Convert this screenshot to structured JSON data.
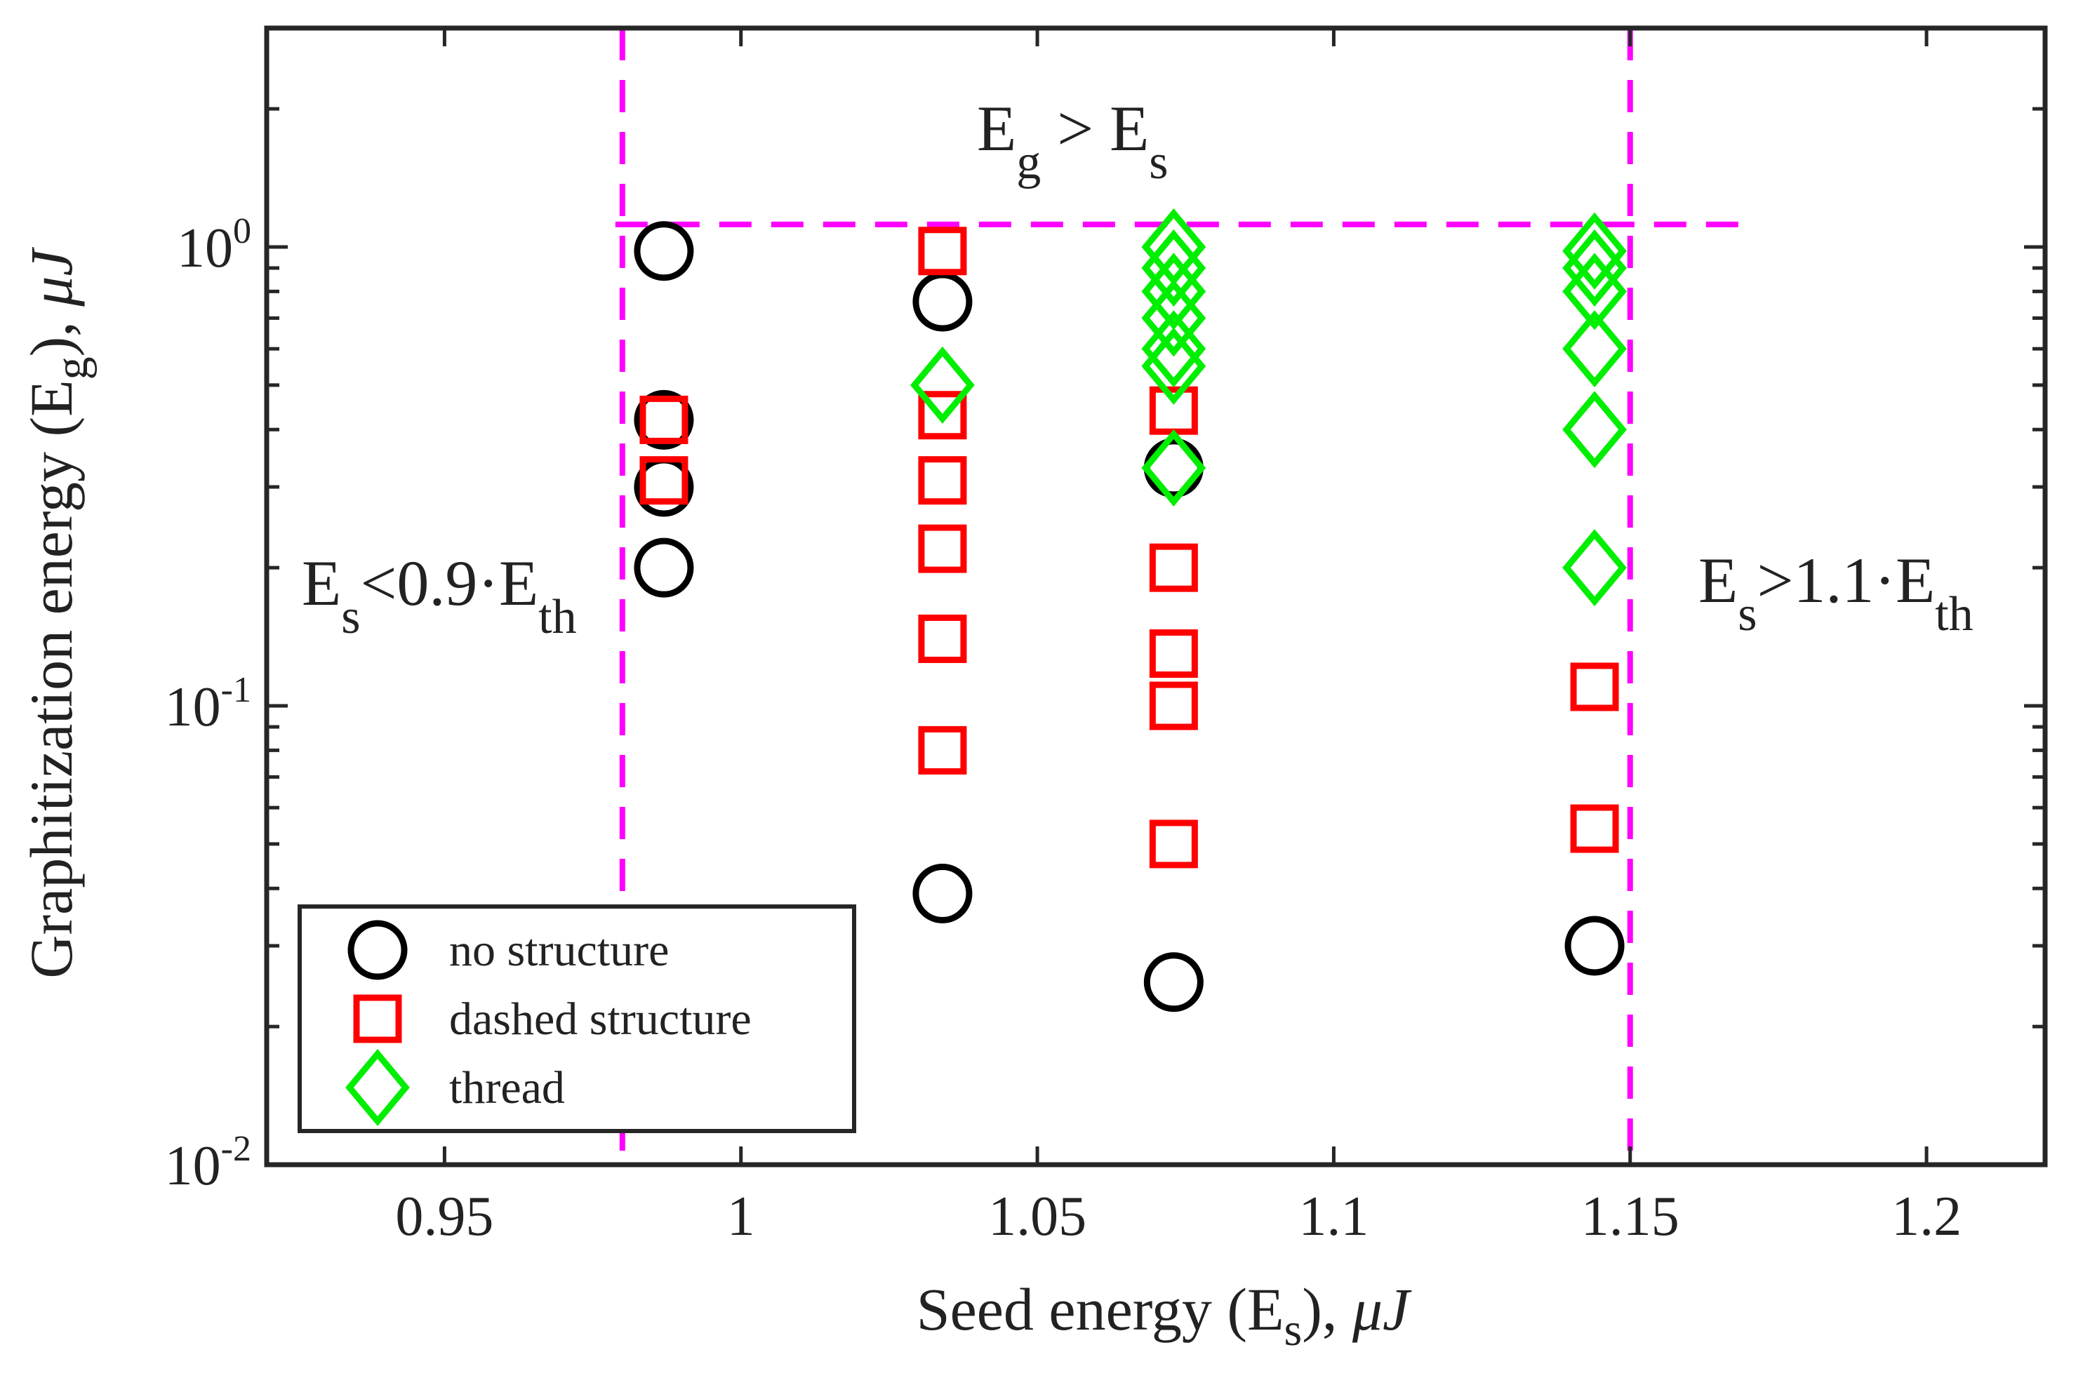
{
  "chart_data": {
    "type": "scatter",
    "title": "",
    "xlabel": {
      "main": "Seed energy (E",
      "sub": "s",
      "tail": "), ",
      "unit": "μJ"
    },
    "ylabel": {
      "main": "Graphitization energy (E",
      "sub": "g",
      "tail": "), ",
      "unit": "μJ"
    },
    "xlim": [
      0.92,
      1.22
    ],
    "ylim": [
      0.01,
      3.0
    ],
    "yscale": "log",
    "grid": false,
    "x_ticks": [
      0.95,
      1.0,
      1.05,
      1.1,
      1.15,
      1.2
    ],
    "x_tick_labels": [
      "0.95",
      "1",
      "1.05",
      "1.1",
      "1.15",
      "1.2"
    ],
    "y_ticks": [
      0.01,
      0.1,
      1.0
    ],
    "y_tick_labels": [
      {
        "base": "10",
        "exp": "-2"
      },
      {
        "base": "10",
        "exp": "-1"
      },
      {
        "base": "10",
        "exp": "0"
      }
    ],
    "reference_lines": [
      {
        "orientation": "vertical",
        "x": 0.98,
        "color": "#ff00ff",
        "style": "dashed"
      },
      {
        "orientation": "vertical",
        "x": 1.15,
        "color": "#ff00ff",
        "style": "dashed"
      },
      {
        "orientation": "horizontal",
        "y": 1.12,
        "x_from": 0.98,
        "x_to": 1.17,
        "color": "#ff00ff",
        "style": "dashed"
      }
    ],
    "annotations": [
      {
        "id": "eg-gt-es",
        "parts": [
          {
            "t": "E"
          },
          {
            "t": "g",
            "sub": true
          },
          {
            "t": " > E"
          },
          {
            "t": "s",
            "sub": true
          }
        ]
      },
      {
        "id": "es-lt",
        "parts": [
          {
            "t": "E"
          },
          {
            "t": "s",
            "sub": true
          },
          {
            "t": "<0.9·E"
          },
          {
            "t": "th",
            "sub": true
          }
        ]
      },
      {
        "id": "es-gt",
        "parts": [
          {
            "t": "E"
          },
          {
            "t": "s",
            "sub": true
          },
          {
            "t": ">1.1·E"
          },
          {
            "t": "th",
            "sub": true
          }
        ]
      }
    ],
    "series": [
      {
        "name": "no structure",
        "marker": "circle",
        "color": "#000000",
        "points": [
          {
            "x": 0.987,
            "y": 0.98
          },
          {
            "x": 0.987,
            "y": 0.42
          },
          {
            "x": 0.987,
            "y": 0.3
          },
          {
            "x": 0.987,
            "y": 0.2
          },
          {
            "x": 1.034,
            "y": 0.76
          },
          {
            "x": 1.034,
            "y": 0.039
          },
          {
            "x": 1.073,
            "y": 0.33
          },
          {
            "x": 1.073,
            "y": 0.025
          },
          {
            "x": 1.144,
            "y": 0.03
          }
        ]
      },
      {
        "name": "dashed structure",
        "marker": "square",
        "color": "#ff0000",
        "points": [
          {
            "x": 0.987,
            "y": 0.42
          },
          {
            "x": 0.987,
            "y": 0.31
          },
          {
            "x": 1.034,
            "y": 0.98
          },
          {
            "x": 1.034,
            "y": 0.43
          },
          {
            "x": 1.034,
            "y": 0.31
          },
          {
            "x": 1.034,
            "y": 0.22
          },
          {
            "x": 1.034,
            "y": 0.14
          },
          {
            "x": 1.034,
            "y": 0.08
          },
          {
            "x": 1.073,
            "y": 0.44
          },
          {
            "x": 1.073,
            "y": 0.2
          },
          {
            "x": 1.073,
            "y": 0.13
          },
          {
            "x": 1.073,
            "y": 0.1
          },
          {
            "x": 1.073,
            "y": 0.05
          },
          {
            "x": 1.144,
            "y": 0.11
          },
          {
            "x": 1.144,
            "y": 0.054
          }
        ]
      },
      {
        "name": "thread",
        "marker": "diamond",
        "color": "#00ee00",
        "points": [
          {
            "x": 1.034,
            "y": 0.5
          },
          {
            "x": 1.073,
            "y": 1.0
          },
          {
            "x": 1.073,
            "y": 0.9
          },
          {
            "x": 1.073,
            "y": 0.8
          },
          {
            "x": 1.073,
            "y": 0.7
          },
          {
            "x": 1.073,
            "y": 0.6
          },
          {
            "x": 1.073,
            "y": 0.55
          },
          {
            "x": 1.073,
            "y": 0.33
          },
          {
            "x": 1.144,
            "y": 0.98
          },
          {
            "x": 1.144,
            "y": 0.9
          },
          {
            "x": 1.144,
            "y": 0.8
          },
          {
            "x": 1.144,
            "y": 0.6
          },
          {
            "x": 1.144,
            "y": 0.4
          },
          {
            "x": 1.144,
            "y": 0.2
          }
        ]
      }
    ],
    "legend": {
      "position": "bottom-left",
      "entries": [
        {
          "label": "no structure",
          "marker": "circle",
          "color": "#000000"
        },
        {
          "label": "dashed structure",
          "marker": "square",
          "color": "#ff0000"
        },
        {
          "label": "thread",
          "marker": "diamond",
          "color": "#00ee00"
        }
      ]
    }
  }
}
